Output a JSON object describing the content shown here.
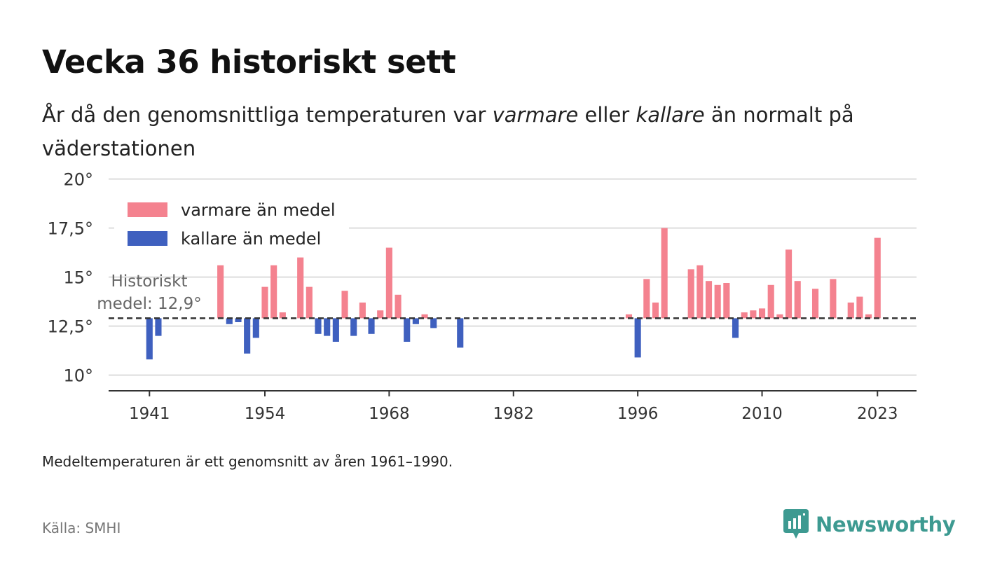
{
  "header": {
    "title": "Vecka 36 historiskt sett",
    "subtitle_parts": [
      "År då den genomsnittliga temperaturen var ",
      "varmare",
      " eller ",
      "kallare",
      " än normalt på väderstationen"
    ]
  },
  "footer": {
    "note": "Medeltemperaturen är ett genomsnitt av åren 1961–1990.",
    "source": "Källa: SMHI",
    "brand": "Newsworthy"
  },
  "colors": {
    "warm": "#f4828f",
    "cold": "#3f60bf",
    "brand": "#3d9a91"
  },
  "chart_data": {
    "type": "bar",
    "baseline": 12.9,
    "baseline_label": [
      "Historiskt",
      "medel: 12,9°"
    ],
    "ylim": [
      9.2,
      20.2
    ],
    "yticks": [
      10,
      12.5,
      15,
      17.5,
      20
    ],
    "ytick_labels": [
      "10°",
      "12,5°",
      "15°",
      "17,5°",
      "20°"
    ],
    "xlim": [
      1936.4,
      2027.4
    ],
    "xticks": [
      1941,
      1954,
      1968,
      1982,
      1996,
      2010,
      2023
    ],
    "xtick_labels": [
      "1941",
      "1954",
      "1968",
      "1982",
      "1996",
      "2010",
      "2023"
    ],
    "grid": true,
    "legend_position": "top-left",
    "series": [
      {
        "name": "varmare än medel",
        "color": "#f4828f"
      },
      {
        "name": "kallare än medel",
        "color": "#3f60bf"
      }
    ],
    "x": [
      1941,
      1942,
      1949,
      1950,
      1951,
      1952,
      1953,
      1954,
      1955,
      1956,
      1958,
      1959,
      1960,
      1961,
      1962,
      1963,
      1964,
      1965,
      1966,
      1967,
      1968,
      1969,
      1970,
      1971,
      1972,
      1973,
      1976,
      1995,
      1996,
      1997,
      1998,
      1999,
      2002,
      2003,
      2004,
      2005,
      2006,
      2007,
      2008,
      2009,
      2010,
      2011,
      2012,
      2013,
      2014,
      2016,
      2018,
      2020,
      2021,
      2022,
      2023
    ],
    "values": [
      10.8,
      12.0,
      15.6,
      12.6,
      12.7,
      11.1,
      11.9,
      14.5,
      15.6,
      13.2,
      16.0,
      14.5,
      12.1,
      12.0,
      11.7,
      14.3,
      12.0,
      13.7,
      12.1,
      13.3,
      16.5,
      14.1,
      11.7,
      12.6,
      13.1,
      12.4,
      11.4,
      13.1,
      10.9,
      14.9,
      13.7,
      17.5,
      15.4,
      15.6,
      14.8,
      14.6,
      14.7,
      11.9,
      13.2,
      13.3,
      13.4,
      14.6,
      13.1,
      16.4,
      14.8,
      14.4,
      14.9,
      13.7,
      14.0,
      13.1,
      17.0
    ]
  }
}
